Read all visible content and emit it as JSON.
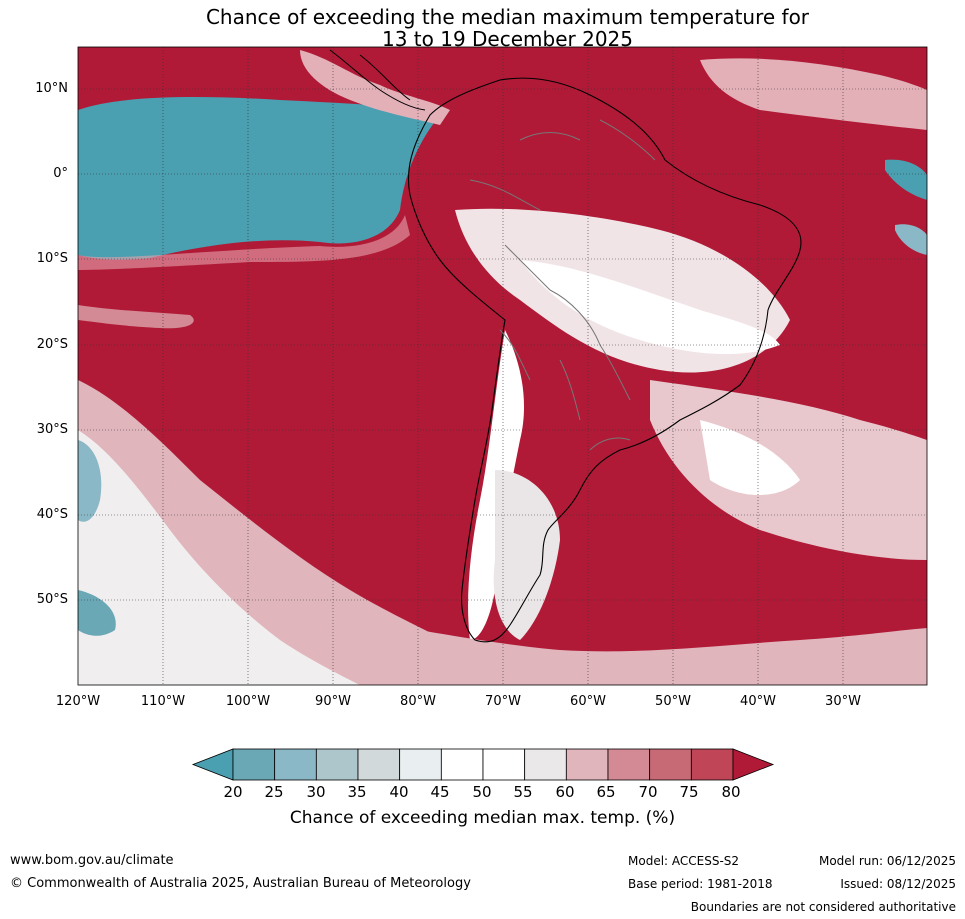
{
  "title": {
    "line1": "Chance of exceeding the median maximum temperature for",
    "line2": "13 to 19 December 2025"
  },
  "map": {
    "region": "South America and surrounding oceans",
    "lat_labels": [
      "10°N",
      "0°",
      "10°S",
      "20°S",
      "30°S",
      "40°S",
      "50°S"
    ],
    "lon_labels": [
      "120°W",
      "110°W",
      "100°W",
      "90°W",
      "80°W",
      "70°W",
      "60°W",
      "50°W",
      "40°W",
      "30°W"
    ],
    "extent": {
      "lon_min": -120,
      "lon_max": -20,
      "lat_min": -60,
      "lat_max": 15
    }
  },
  "colorbar": {
    "ticks": [
      "20",
      "25",
      "30",
      "35",
      "40",
      "45",
      "50",
      "55",
      "60",
      "65",
      "70",
      "75",
      "80"
    ],
    "colors": [
      "#4a9fb0",
      "#6aa8b6",
      "#8ab8c6",
      "#adc6cc",
      "#d1d9da",
      "#e9eff1",
      "#ffffff",
      "#ffffff",
      "#ebe8e9",
      "#e0b5bc",
      "#d48a95",
      "#c76a75",
      "#c04657",
      "#b01a37"
    ],
    "label": "Chance of exceeding median max. temp. (%)"
  },
  "footer": {
    "website": "www.bom.gov.au/climate",
    "copyright": "© Commonwealth of Australia 2025, Australian Bureau of Meteorology",
    "model": "Model: ACCESS-S2",
    "base_period": "Base period: 1981-2018",
    "model_run": "Model run: 06/12/2025",
    "issued": "Issued: 08/12/2025",
    "disclaimer": "Boundaries are not considered authoritative"
  }
}
